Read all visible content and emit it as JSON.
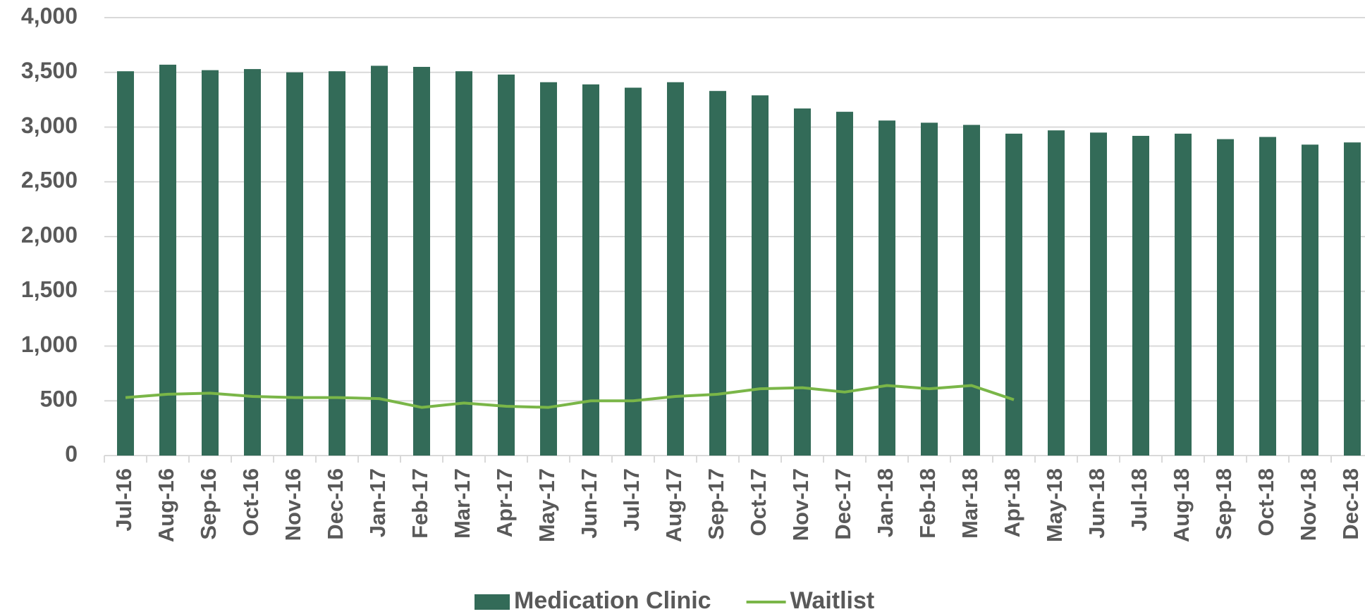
{
  "chart_data": {
    "type": "bar_line",
    "categories": [
      "Jul-16",
      "Aug-16",
      "Sep-16",
      "Oct-16",
      "Nov-16",
      "Dec-16",
      "Jan-17",
      "Feb-17",
      "Mar-17",
      "Apr-17",
      "May-17",
      "Jun-17",
      "Jul-17",
      "Aug-17",
      "Sep-17",
      "Oct-17",
      "Nov-17",
      "Dec-17",
      "Jan-18",
      "Feb-18",
      "Mar-18",
      "Apr-18",
      "May-18",
      "Jun-18",
      "Jul-18",
      "Aug-18",
      "Sep-18",
      "Oct-18",
      "Nov-18",
      "Dec-18"
    ],
    "series": [
      {
        "name": "Medication Clinic",
        "type": "bar",
        "color": "#336b58",
        "values": [
          3510,
          3570,
          3520,
          3530,
          3500,
          3510,
          3560,
          3550,
          3510,
          3480,
          3410,
          3390,
          3360,
          3410,
          3330,
          3290,
          3170,
          3140,
          3060,
          3040,
          3020,
          2940,
          2970,
          2950,
          2920,
          2940,
          2890,
          2910,
          2840,
          2860
        ]
      },
      {
        "name": "Waitlist",
        "type": "line",
        "color": "#7ab648",
        "values": [
          530,
          560,
          570,
          540,
          530,
          530,
          520,
          440,
          480,
          450,
          440,
          500,
          500,
          540,
          560,
          610,
          620,
          580,
          640,
          610,
          640,
          510,
          null,
          null,
          null,
          null,
          null,
          null,
          null,
          null
        ]
      }
    ],
    "ylim": [
      0,
      4000
    ],
    "yticks": [
      0,
      500,
      {
        "value": 1000,
        "label": "1,000"
      },
      {
        "value": 1500,
        "label": "1,500"
      },
      {
        "value": 2000,
        "label": "2,000"
      },
      {
        "value": 2500,
        "label": "2,500"
      },
      {
        "value": 3000,
        "label": "3,000"
      },
      {
        "value": 3500,
        "label": "3,500"
      },
      {
        "value": 4000,
        "label": "4,000"
      }
    ],
    "grid": true,
    "legend": "bottom"
  }
}
